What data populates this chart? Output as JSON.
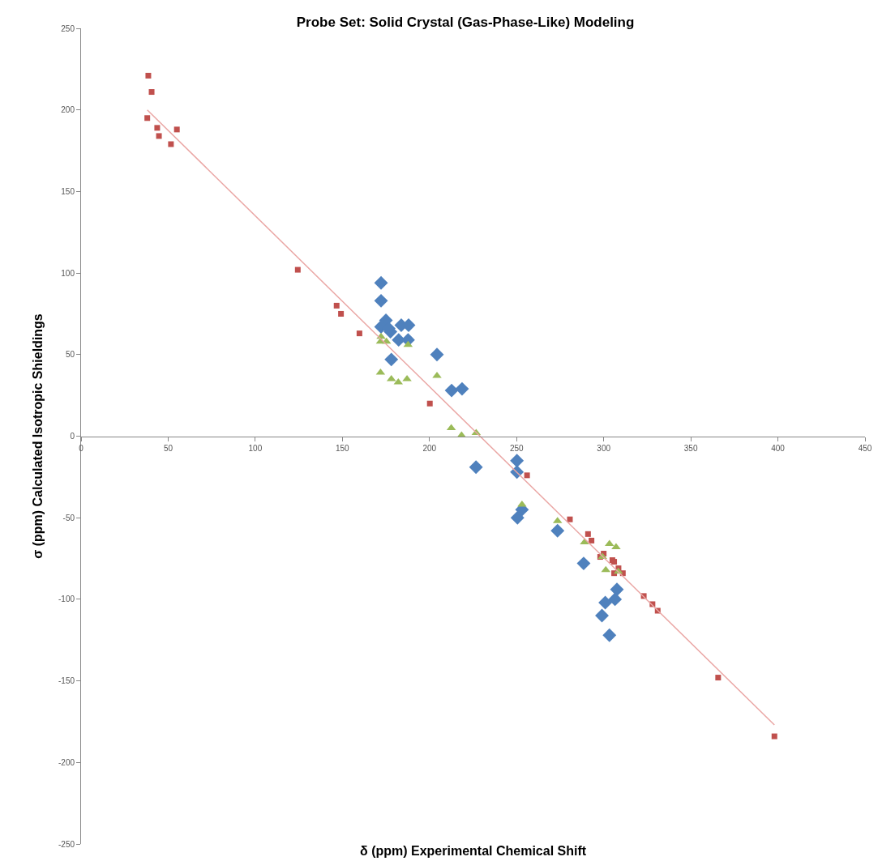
{
  "chart_data": {
    "type": "scatter",
    "title": "Probe Set: Solid Crystal (Gas-Phase-Like) Modeling",
    "xlabel": "δ (ppm) Experimental Chemical Shift",
    "ylabel": "σ (ppm) Calculated Isotropic Shieldings",
    "xlim": [
      0,
      450
    ],
    "xticks": [
      0,
      50,
      100,
      150,
      200,
      250,
      300,
      350,
      400,
      450
    ],
    "ylim": [
      -250,
      250
    ],
    "yticks": [
      -250,
      -200,
      -150,
      -100,
      -50,
      0,
      50,
      100,
      150,
      200,
      250
    ],
    "series": [
      {
        "color": "#4f81bd",
        "marker": "diamond",
        "x": [
          172.2,
          172.2,
          175,
          172.2,
          177.6,
          176.6,
          183.8,
          188,
          182.3,
          187.7,
          178.1,
          204.3,
          212.7,
          218.7,
          226.7,
          250.2,
          250.2,
          253.1,
          250.5,
          273.5,
          288.5,
          307.6,
          306.5,
          300.9,
          299,
          303.3
        ],
        "values": [
          94,
          83,
          71,
          67,
          64,
          66,
          68,
          68,
          59,
          59,
          47,
          50,
          28,
          29,
          -19,
          -15,
          -22,
          -45,
          -50,
          -58,
          -78,
          -94,
          -100,
          -102,
          -110,
          -122
        ]
      },
      {
        "color": "#c0504d",
        "marker": "square",
        "x": [
          38.6,
          40.5,
          38,
          43.7,
          44.7,
          55,
          51.6,
          124.4,
          146.7,
          149.2,
          159.8,
          200.2,
          256,
          280.6,
          291,
          293,
          298,
          300,
          305,
          306,
          306,
          308.5,
          311,
          323,
          328,
          331,
          365.7,
          398
        ],
        "values": [
          221,
          211,
          195,
          189,
          184,
          188,
          179,
          102,
          80,
          75,
          63,
          20,
          -24,
          -51,
          -60,
          -64,
          -74,
          -72,
          -76,
          -77,
          -84,
          -81,
          -84,
          -98,
          -103,
          -107,
          -148,
          -184
        ]
      },
      {
        "color": "#9bbb59",
        "marker": "triangle",
        "x": [
          172.2,
          171.9,
          175.3,
          187.7,
          171.9,
          178.1,
          182.1,
          187.1,
          204.3,
          212.5,
          218.4,
          226.8,
          253.1,
          273.5,
          289,
          303.3,
          307.1,
          299.3,
          301.2,
          308.4
        ],
        "values": [
          61,
          58,
          58,
          56,
          39,
          35,
          33,
          35,
          37,
          5,
          0.5,
          2,
          -42,
          -52,
          -65,
          -66,
          -68,
          -74,
          -82,
          -83
        ]
      },
      {
        "type": "line",
        "color": "#eaa6a4",
        "marker": "none",
        "x": [
          38,
          398
        ],
        "values": [
          200,
          -177
        ]
      }
    ]
  }
}
